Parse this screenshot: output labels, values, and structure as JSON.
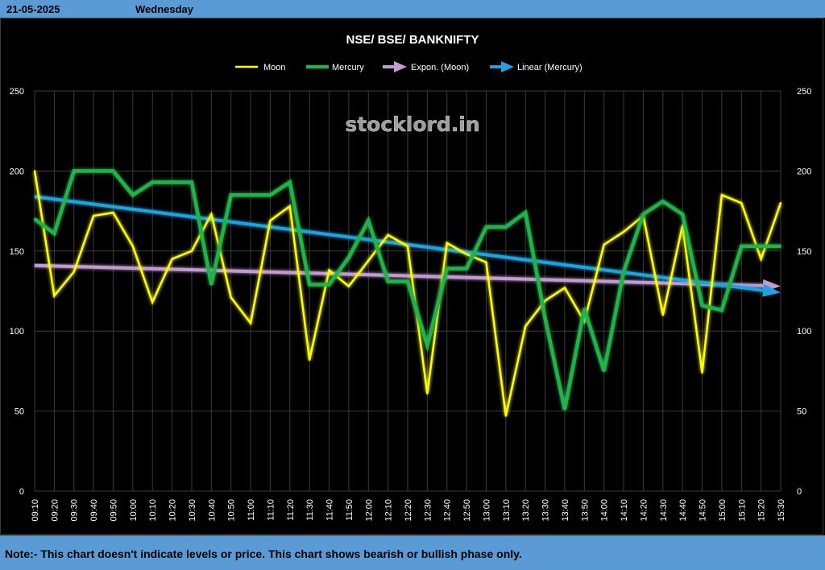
{
  "header": {
    "date": "21-05-2025",
    "day": "Wednesday"
  },
  "footer": {
    "note": "Note:- This chart doesn't indicate levels or price. This chart shows bearish or bullish phase only."
  },
  "watermark": "stocklord.in",
  "colors": {
    "background": "#000000",
    "moon": "#ffff00",
    "mercury": "#22b14c",
    "expon": "#c39bd3",
    "linear": "#1fa3e0",
    "header_bar": "#5b9bd5"
  },
  "chart_data": {
    "type": "line",
    "title": "NSE/ BSE/ BANKNIFTY",
    "xlabel": "",
    "ylabel": "",
    "ylim": [
      0,
      250
    ],
    "yticks": [
      0,
      50,
      100,
      150,
      200,
      250
    ],
    "grid": true,
    "legend_position": "top",
    "categories": [
      "09:10",
      "09:20",
      "09:30",
      "09:40",
      "09:50",
      "10:00",
      "10:10",
      "10:20",
      "10:30",
      "10:40",
      "10:50",
      "11:00",
      "11:10",
      "11:20",
      "11:30",
      "11:40",
      "11:50",
      "12:00",
      "12:10",
      "12:20",
      "12:30",
      "12:40",
      "12:50",
      "13:00",
      "13:10",
      "13:20",
      "13:30",
      "13:40",
      "13:50",
      "14:00",
      "14:10",
      "14:20",
      "14:30",
      "14:40",
      "14:50",
      "15:00",
      "15:10",
      "15:20",
      "15:30"
    ],
    "series": [
      {
        "name": "Moon",
        "color": "#ffff00",
        "values": [
          200,
          122,
          137,
          172,
          174,
          153,
          118,
          145,
          150,
          173,
          121,
          105,
          169,
          178,
          82,
          138,
          128,
          144,
          160,
          153,
          61,
          155,
          148,
          143,
          47,
          103,
          119,
          127,
          106,
          154,
          162,
          172,
          110,
          166,
          74,
          185,
          180,
          145,
          180
        ]
      },
      {
        "name": "Mercury",
        "color": "#22b14c",
        "values": [
          170,
          161,
          200,
          200,
          200,
          185,
          193,
          193,
          193,
          129,
          185,
          185,
          185,
          193,
          129,
          129,
          146,
          169,
          131,
          131,
          91,
          139,
          139,
          165,
          165,
          174,
          108,
          51,
          114,
          75,
          137,
          173,
          181,
          173,
          116,
          113,
          153,
          153,
          153
        ]
      }
    ],
    "trendlines": [
      {
        "name": "Expon. (Moon)",
        "type": "exponential",
        "of": "Moon",
        "color": "#c39bd3",
        "start": 141,
        "end": 128
      },
      {
        "name": "Linear (Mercury)",
        "type": "linear",
        "of": "Mercury",
        "color": "#1fa3e0",
        "start": 184,
        "end": 124
      }
    ]
  }
}
